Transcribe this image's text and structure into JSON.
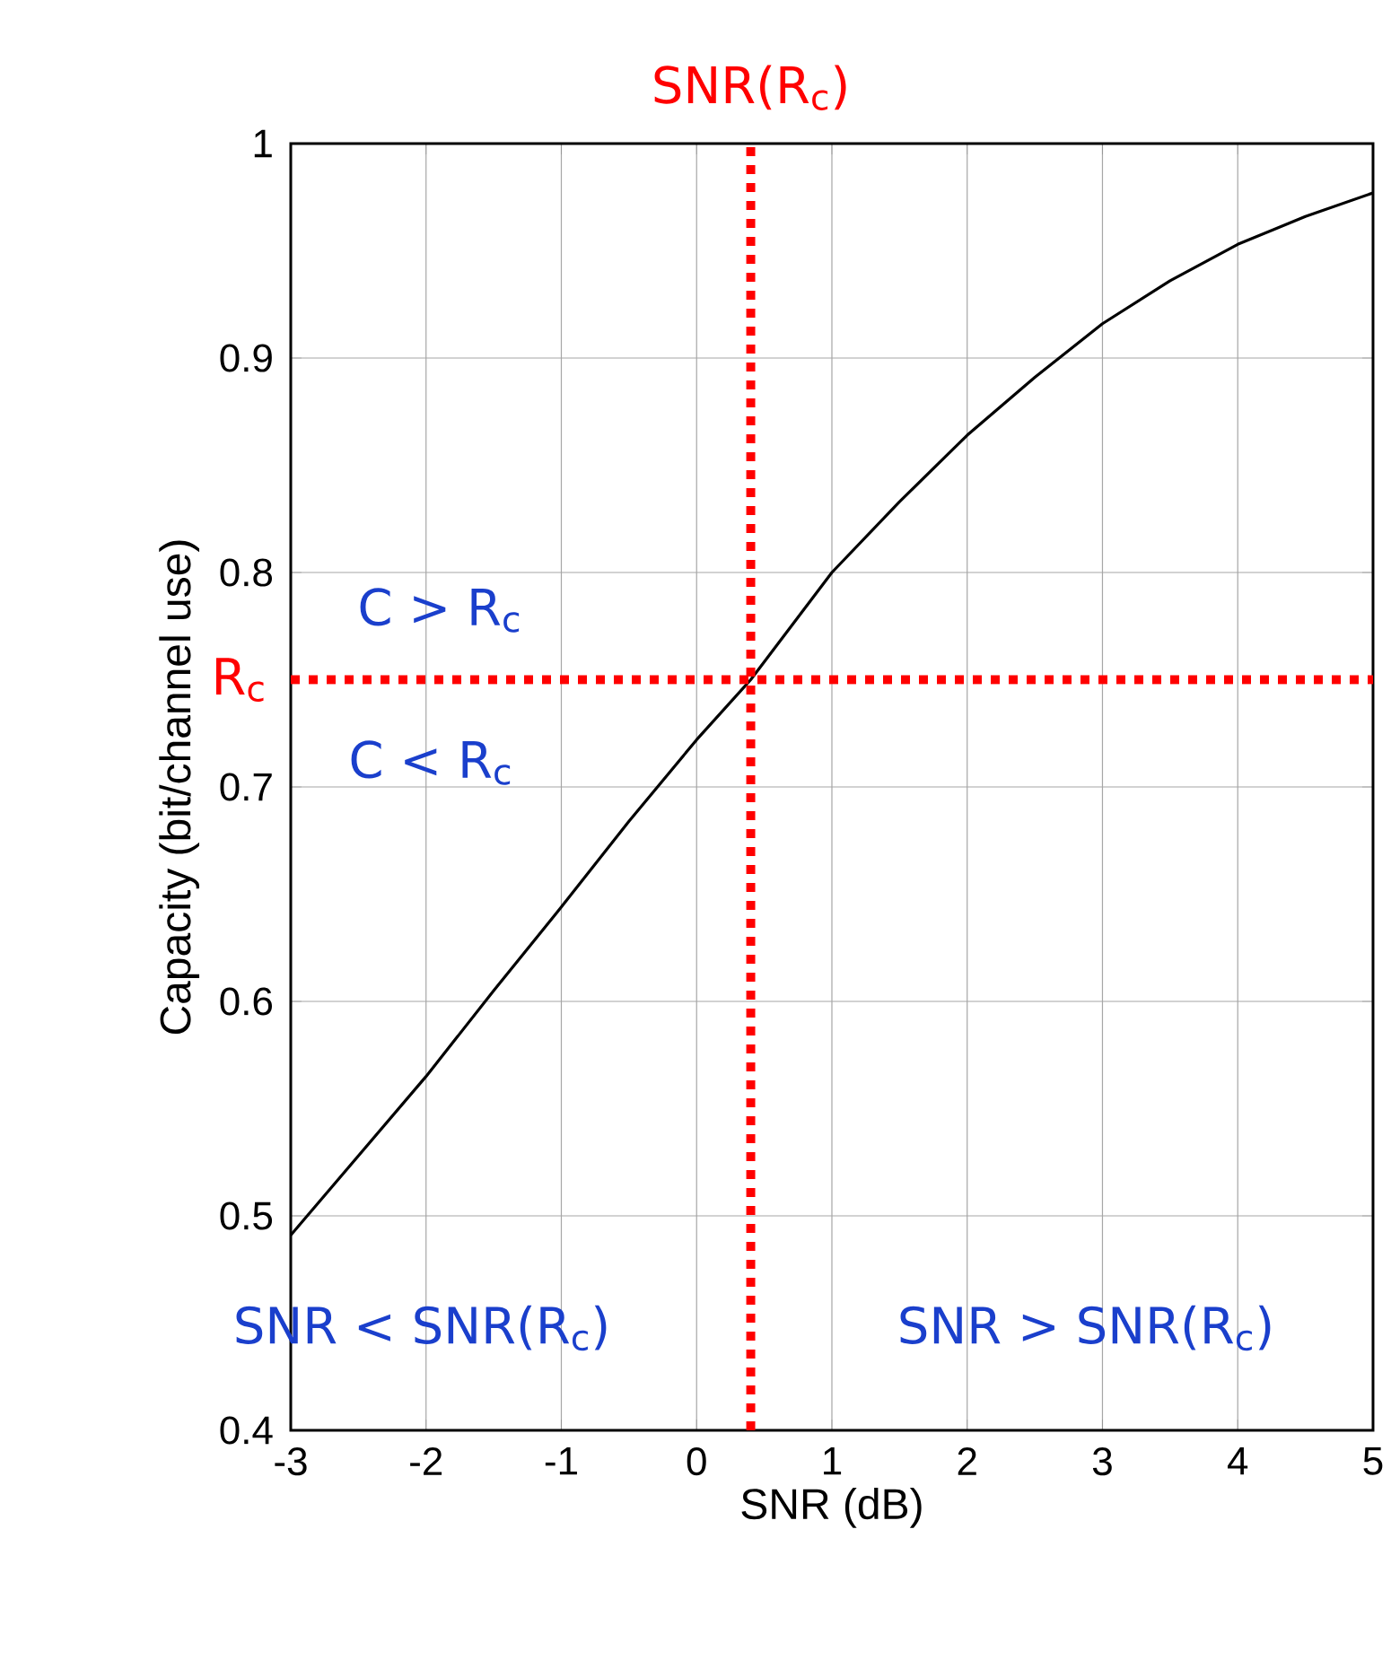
{
  "chart_data": {
    "type": "line",
    "xlabel": "SNR (dB)",
    "ylabel": "Capacity (bit/channel use)",
    "x": [
      -3,
      -2.5,
      -2,
      -1.5,
      -1,
      -0.5,
      0,
      0.4,
      1,
      1.5,
      2,
      2.5,
      3,
      3.5,
      4,
      4.5,
      5
    ],
    "series": [
      {
        "color": "#000000",
        "values": [
          0.491,
          0.528,
          0.565,
          0.605,
          0.644,
          0.684,
          0.722,
          0.75,
          0.8,
          0.833,
          0.864,
          0.891,
          0.916,
          0.936,
          0.953,
          0.966,
          0.977
        ]
      }
    ],
    "xlim": [
      -3,
      5
    ],
    "ylim": [
      0.4,
      1
    ],
    "xticks": [
      -3,
      -2,
      -1,
      0,
      1,
      2,
      3,
      4,
      5
    ],
    "yticks": [
      0.4,
      0.5,
      0.6,
      0.7,
      0.8,
      0.9,
      1
    ],
    "grid": true,
    "marker": "none",
    "line_style": "solid",
    "ref_lines": [
      {
        "axis": "x",
        "value": 0.4,
        "label": "SNR(R$_{c}$)",
        "color": "#ff0000",
        "line_style": "dotted"
      },
      {
        "axis": "y",
        "value": 0.75,
        "label": "R$_{c}$",
        "color": "#ff0000",
        "line_style": "dotted"
      }
    ],
    "annotations": [
      "C > R$_{c}$",
      "C < R$_{c}$",
      "SNR < SNR(R$_{c}$)",
      "SNR > SNR(R$_{c}$)"
    ]
  }
}
